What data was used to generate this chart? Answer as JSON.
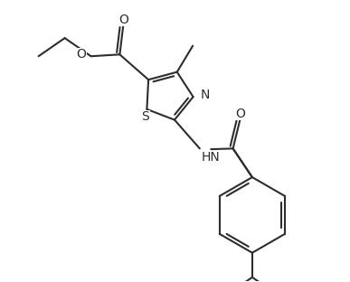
{
  "background_color": "#ffffff",
  "line_color": "#2d2d2d",
  "line_width": 1.5,
  "figsize": [
    3.87,
    3.12
  ],
  "dpi": 100,
  "xlim": [
    0,
    10
  ],
  "ylim": [
    0,
    8
  ]
}
